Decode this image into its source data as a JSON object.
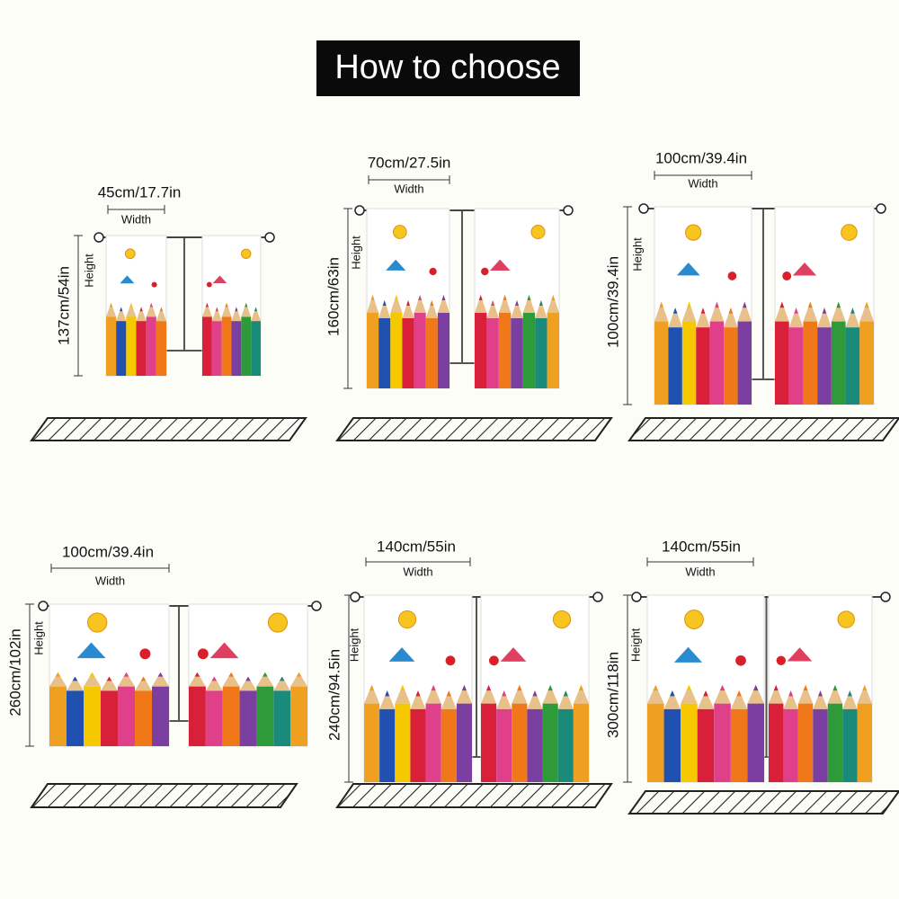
{
  "title": "How to choose",
  "panels": [
    {
      "width_label": "45cm/17.7in",
      "width_word": "Width",
      "height_label": "137cm/54in",
      "height_word": "Height"
    },
    {
      "width_label": "70cm/27.5in",
      "width_word": "Width",
      "height_label": "160cm/63in",
      "height_word": "Height"
    },
    {
      "width_label": "100cm/39.4in",
      "width_word": "Width",
      "height_label": "100cm/39.4in",
      "height_word": "Height"
    },
    {
      "width_label": "100cm/39.4in",
      "width_word": "Width",
      "height_label": "260cm/102in",
      "height_word": "Height"
    },
    {
      "width_label": "140cm/55in",
      "width_word": "Width",
      "height_label": "240cm/94.5in",
      "height_word": "Height"
    },
    {
      "width_label": "140cm/55in",
      "width_word": "Width",
      "height_label": "300cm/118in",
      "height_word": "Height"
    }
  ]
}
